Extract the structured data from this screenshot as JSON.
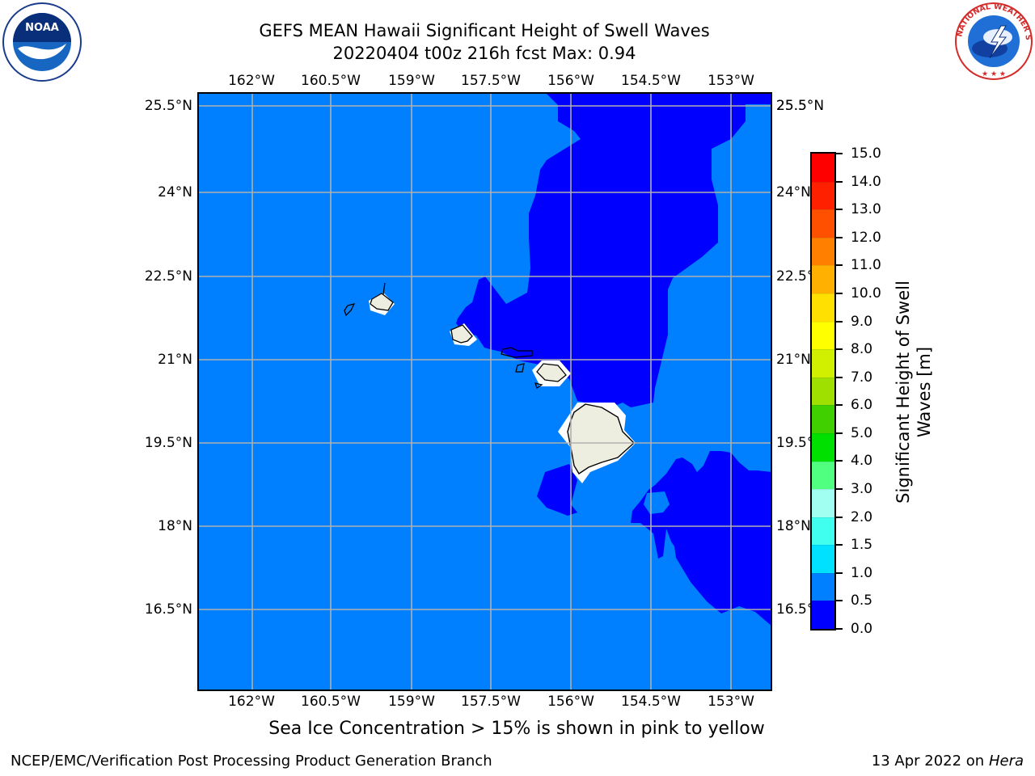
{
  "header": {
    "title_line1": "GEFS MEAN Hawaii Significant Height of Swell Waves",
    "title_line2": "20220404 t00z 216h fcst   Max: 0.94"
  },
  "logos": {
    "noaa": {
      "icon": "noaa-logo",
      "text": "NOAA"
    },
    "nws": {
      "icon": "nws-logo",
      "ring_text": "NATIONAL WEATHER SERVICE"
    }
  },
  "map": {
    "lon_labels": [
      "162°W",
      "160.5°W",
      "159°W",
      "157.5°W",
      "156°W",
      "154.5°W",
      "153°W"
    ],
    "lat_labels": [
      "25.5°N",
      "24°N",
      "22.5°N",
      "21°N",
      "19.5°N",
      "18°N",
      "16.5°N"
    ],
    "colors": {
      "swell_0_0_5": "#0000ff",
      "swell_0_5_1_0": "#0080ff",
      "land": "#eeeee0",
      "gridline": "#b0b0b0"
    }
  },
  "colorbar": {
    "label": "Significant Height of Swell Waves [m]",
    "ticks": [
      "0.0",
      "0.5",
      "1.0",
      "1.5",
      "2.0",
      "3.0",
      "4.0",
      "5.0",
      "6.0",
      "7.0",
      "8.0",
      "9.0",
      "10.0",
      "11.0",
      "12.0",
      "13.0",
      "14.0",
      "15.0"
    ],
    "colors": [
      "#0000ff",
      "#0080ff",
      "#00e0ff",
      "#40ffee",
      "#a0fff0",
      "#50ff80",
      "#00e000",
      "#40d000",
      "#a0e000",
      "#d0f000",
      "#ffff00",
      "#ffe000",
      "#ffb000",
      "#ff8000",
      "#ff5000",
      "#ff2000",
      "#ff0000"
    ]
  },
  "notes": {
    "ice": "Sea Ice Concentration > 15% is shown in pink to yellow"
  },
  "footer": {
    "left": "NCEP/EMC/Verification Post Processing Product Generation Branch",
    "date": "13 Apr 2022 on ",
    "machine": "Hera"
  }
}
